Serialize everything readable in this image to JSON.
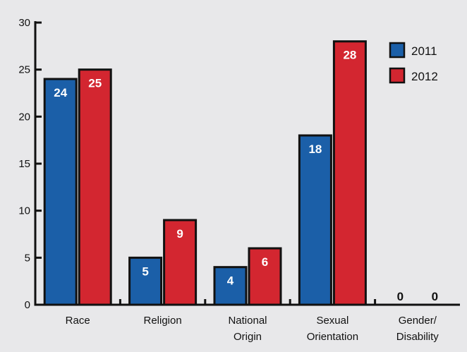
{
  "chart_data": {
    "type": "bar",
    "categories": [
      [
        "Race"
      ],
      [
        "Religion"
      ],
      [
        "National",
        "Origin"
      ],
      [
        "Sexual",
        "Orientation"
      ],
      [
        "Gender/",
        "Disability"
      ]
    ],
    "series": [
      {
        "name": "2011",
        "values": [
          24,
          5,
          4,
          18,
          0
        ],
        "color": "#1b5fa8"
      },
      {
        "name": "2012",
        "values": [
          25,
          9,
          6,
          28,
          0
        ],
        "color": "#d32630"
      }
    ],
    "ylim": [
      0,
      30
    ],
    "yticks": [
      0,
      5,
      10,
      15,
      20,
      25,
      30
    ],
    "title": "",
    "xlabel": "",
    "ylabel": "",
    "legend_position": "top-right",
    "grid": false
  }
}
